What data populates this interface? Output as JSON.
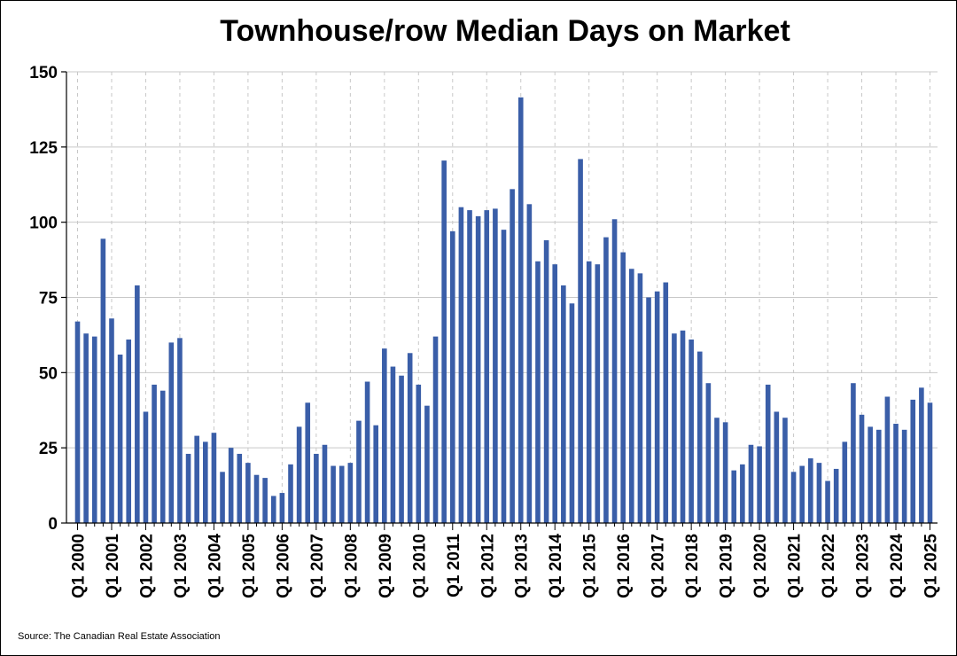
{
  "chart_data": {
    "type": "bar",
    "title": "Townhouse/row Median Days on Market",
    "source": "Source: The Canadian Real Estate Association",
    "bar_color": "#3a5ea8",
    "ylim": [
      0,
      150
    ],
    "yticks": [
      0,
      25,
      50,
      75,
      100,
      125,
      150
    ],
    "grid": "horizontal solid + vertical dashed at year starts",
    "start_year": 2000,
    "start_quarter": 1,
    "categories": [
      "Q1 2000",
      "Q2 2000",
      "Q3 2000",
      "Q4 2000",
      "Q1 2001",
      "Q2 2001",
      "Q3 2001",
      "Q4 2001",
      "Q1 2002",
      "Q2 2002",
      "Q3 2002",
      "Q4 2002",
      "Q1 2003",
      "Q2 2003",
      "Q3 2003",
      "Q4 2003",
      "Q1 2004",
      "Q2 2004",
      "Q3 2004",
      "Q4 2004",
      "Q1 2005",
      "Q2 2005",
      "Q3 2005",
      "Q4 2005",
      "Q1 2006",
      "Q2 2006",
      "Q3 2006",
      "Q4 2006",
      "Q1 2007",
      "Q2 2007",
      "Q3 2007",
      "Q4 2007",
      "Q1 2008",
      "Q2 2008",
      "Q3 2008",
      "Q4 2008",
      "Q1 2009",
      "Q2 2009",
      "Q3 2009",
      "Q4 2009",
      "Q1 2010",
      "Q2 2010",
      "Q3 2010",
      "Q4 2010",
      "Q1 2011",
      "Q2 2011",
      "Q3 2011",
      "Q4 2011",
      "Q1 2012",
      "Q2 2012",
      "Q3 2012",
      "Q4 2012",
      "Q1 2013",
      "Q2 2013",
      "Q3 2013",
      "Q4 2013",
      "Q1 2014",
      "Q2 2014",
      "Q3 2014",
      "Q4 2014",
      "Q1 2015",
      "Q2 2015",
      "Q3 2015",
      "Q4 2015",
      "Q1 2016",
      "Q2 2016",
      "Q3 2016",
      "Q4 2016",
      "Q1 2017",
      "Q2 2017",
      "Q3 2017",
      "Q4 2017",
      "Q1 2018",
      "Q2 2018",
      "Q3 2018",
      "Q4 2018",
      "Q1 2019",
      "Q2 2019",
      "Q3 2019",
      "Q4 2019",
      "Q1 2020",
      "Q2 2020",
      "Q3 2020",
      "Q4 2020",
      "Q1 2021",
      "Q2 2021",
      "Q3 2021",
      "Q4 2021",
      "Q1 2022",
      "Q2 2022",
      "Q3 2022",
      "Q4 2022",
      "Q1 2023",
      "Q2 2023",
      "Q3 2023",
      "Q4 2023",
      "Q1 2024",
      "Q2 2024",
      "Q3 2024",
      "Q4 2024",
      "Q1 2025"
    ],
    "xtick_labels": [
      "Q1 2000",
      "Q1 2001",
      "Q1 2002",
      "Q1 2003",
      "Q1 2004",
      "Q1 2005",
      "Q1 2006",
      "Q1 2007",
      "Q1 2008",
      "Q1 2009",
      "Q1 2010",
      "Q1 2011",
      "Q1 2012",
      "Q1 2013",
      "Q1 2014",
      "Q1 2015",
      "Q1 2016",
      "Q1 2017",
      "Q1 2018",
      "Q1 2019",
      "Q1 2020",
      "Q1 2021",
      "Q1 2022",
      "Q1 2023",
      "Q1 2024",
      "Q1 2025"
    ],
    "values": [
      67,
      63,
      62,
      94.5,
      68,
      56,
      61,
      79,
      37,
      46,
      44,
      60,
      61.5,
      23,
      29,
      27,
      30,
      17,
      25,
      23,
      20,
      16,
      15,
      9,
      10,
      19.5,
      32,
      40,
      23,
      26,
      19,
      19,
      20,
      34,
      47,
      32.5,
      58,
      52,
      49,
      56.5,
      46,
      39,
      62,
      120.5,
      97,
      105,
      104,
      102,
      104,
      104.5,
      97.5,
      111,
      141.5,
      106,
      87,
      94,
      86,
      79,
      73,
      121,
      87,
      86,
      95,
      101,
      90,
      84.5,
      83,
      75,
      77,
      80,
      63,
      64,
      61,
      57,
      46.5,
      35,
      33.5,
      17.5,
      19.5,
      26,
      25.5,
      46,
      37,
      35,
      17,
      19,
      21.5,
      20,
      14,
      18,
      27,
      46.5,
      36,
      32,
      31,
      42,
      33,
      31,
      41,
      45,
      40
    ]
  }
}
